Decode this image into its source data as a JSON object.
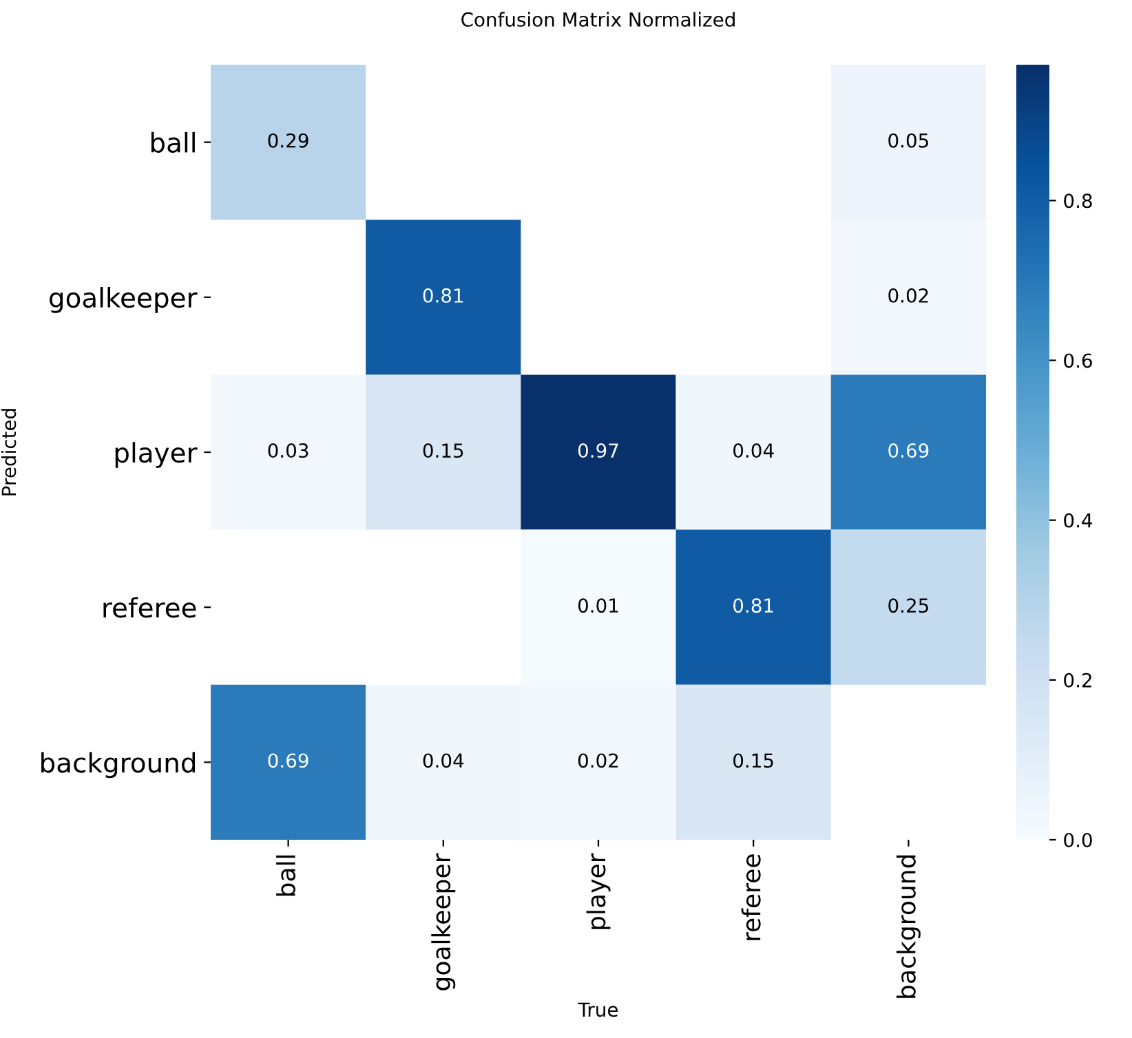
{
  "chart_data": {
    "type": "heatmap",
    "title": "Confusion Matrix Normalized",
    "xlabel": "True",
    "ylabel": "Predicted",
    "categories": [
      "ball",
      "goalkeeper",
      "player",
      "referee",
      "background"
    ],
    "y_categories": [
      "ball",
      "goalkeeper",
      "player",
      "referee",
      "background"
    ],
    "cells": [
      [
        0.29,
        null,
        null,
        null,
        0.05
      ],
      [
        null,
        0.81,
        null,
        null,
        0.02
      ],
      [
        0.03,
        0.15,
        0.97,
        0.04,
        0.69
      ],
      [
        null,
        null,
        0.01,
        0.81,
        0.25
      ],
      [
        0.69,
        0.04,
        0.02,
        0.15,
        null
      ]
    ],
    "data_labels": true,
    "clim": [
      0,
      0.97
    ],
    "cticks": [
      {
        "value": 0,
        "label": "0.0"
      },
      0.2,
      0.4,
      0.6,
      0.8
    ]
  }
}
